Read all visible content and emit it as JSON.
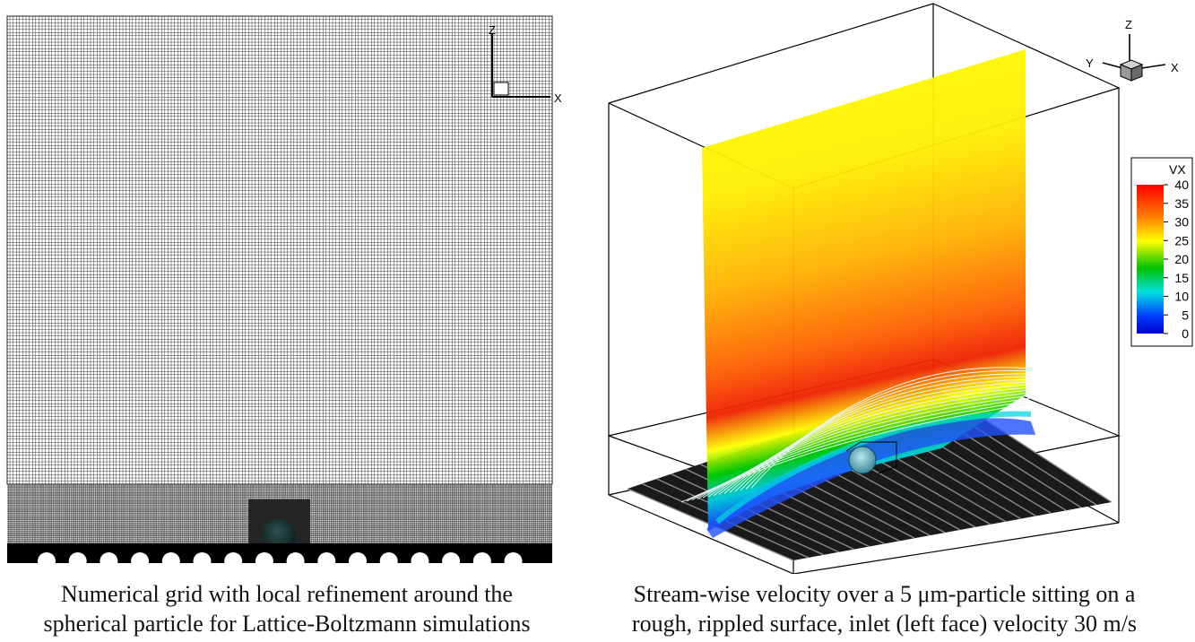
{
  "left_figure": {
    "axis_labels": {
      "z": "Z",
      "x": "X"
    },
    "caption_lines": [
      "Numerical grid with local refinement around the",
      "spherical particle for Lattice-Boltzmann simulations"
    ]
  },
  "right_figure": {
    "axis_labels": {
      "z": "Z",
      "y": "Y",
      "x": "X"
    },
    "legend": {
      "title": "VX",
      "ticks": [
        "40",
        "35",
        "30",
        "25",
        "20",
        "15",
        "10",
        "5",
        "0"
      ],
      "colors": [
        "#ff0000",
        "#ff8000",
        "#ffff00",
        "#00c000",
        "#00e0e0",
        "#0040ff",
        "#0000cc"
      ]
    },
    "caption_lines": [
      "Stream-wise velocity over a 5 μm-particle sitting on a",
      "rough, rippled surface, inlet (left face) velocity 30 m/s"
    ]
  }
}
